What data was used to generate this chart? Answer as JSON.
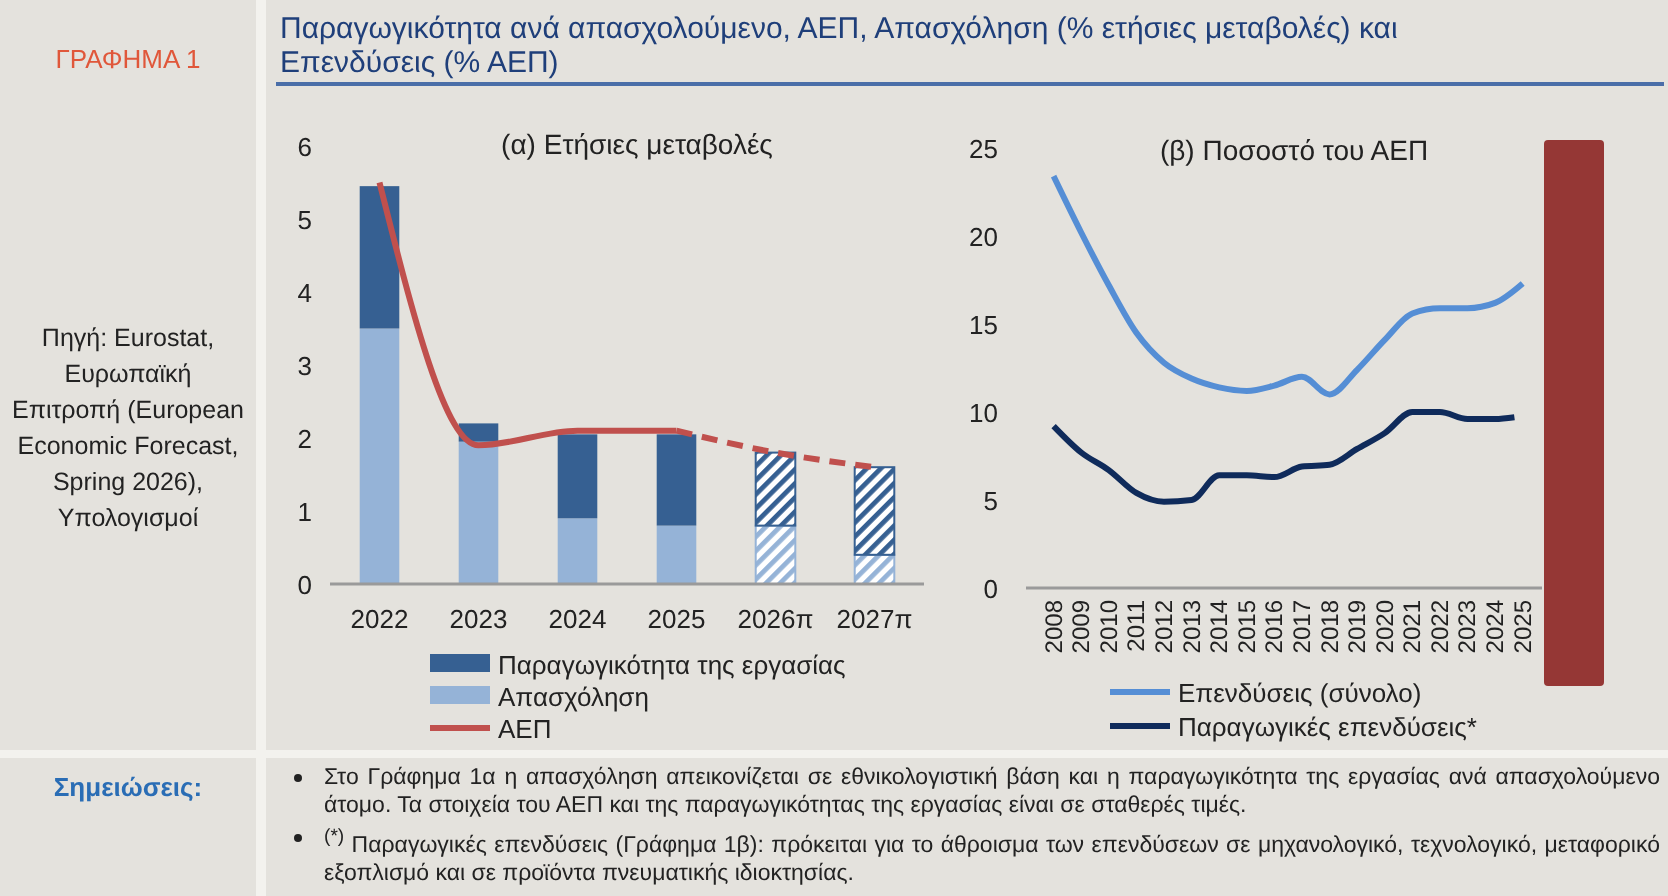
{
  "chart_data": [
    {
      "type": "bar",
      "title": "(α) Ετήσιες μεταβολές",
      "categories": [
        "2022",
        "2023",
        "2024",
        "2025",
        "2026π",
        "2027π"
      ],
      "stacked": true,
      "ylim": [
        0,
        6
      ],
      "yticks": [
        0,
        1,
        2,
        3,
        4,
        5,
        6
      ],
      "legend": "bottom",
      "series": [
        {
          "name": "Απασχόληση",
          "color": "#95b3d7",
          "values": [
            3.5,
            1.95,
            0.9,
            0.8,
            null,
            null
          ]
        },
        {
          "color": "#95b3d7",
          "values": [
            null,
            null,
            null,
            null,
            0.8,
            0.4
          ]
        },
        {
          "name": "Παραγωγικότητα της εργασίας",
          "color": "#366092",
          "values": [
            1.95,
            0.25,
            1.15,
            1.25,
            null,
            null
          ]
        },
        {
          "color": "#366092",
          "values": [
            null,
            null,
            null,
            null,
            1.0,
            1.2
          ]
        },
        {
          "name": "ΑΕΠ",
          "type": "line",
          "color": "#c0504d",
          "values": [
            5.5,
            1.9,
            2.1,
            2.1,
            null,
            null
          ]
        },
        {
          "type": "line",
          "color": "#c0504d",
          "line_style": "dashed",
          "values": [
            null,
            null,
            null,
            2.1,
            1.8,
            1.6
          ]
        }
      ],
      "annotations": [
        "ΓΡΑΦΗΜΑ 1",
        "Παραγωγικότητα ανά απασχολούμενο, ΑΕΠ, Απασχόληση (% ετήσιες μεταβολές) και Επενδύσεις (% ΑΕΠ)",
        "Πηγή: Eurostat, Ευρωπαϊκή Επιτροπή (European Economic Forecast, Spring 2026), Υπολογισμοί",
        "Σημειώσεις:",
        "Στο Γράφημα 1α η απασχόληση απεικονίζεται σε εθνικολογιστική βάση και η παραγωγικότητα της εργασίας ανά απασχολούμενο άτομο. Τα στοιχεία του ΑΕΠ και της παραγωγικότητας της εργασίας είναι σε σταθερές τιμές.",
        "$^{(*)}$ Παραγωγικές επενδύσεις (Γράφημα 1β): πρόκειται για το άθροισμα των επενδύσεων σε μηχανολογικό, τεχνολογικό, μεταφορικό εξοπλισμό και σε προϊόντα πνευματικής ιδιοκτησίας."
      ]
    },
    {
      "type": "line",
      "title": "(β) Ποσοστό του ΑΕΠ",
      "xlim": [
        2007,
        2025.7
      ],
      "xticks": [
        2008,
        2009,
        2010,
        2011,
        2012,
        2013,
        2014,
        2015,
        2016,
        2017,
        2018,
        2019,
        2020,
        2021,
        2022,
        2023,
        2024,
        2025
      ],
      "ylim": [
        0,
        25
      ],
      "yticks": [
        0,
        5,
        10,
        15,
        20,
        25
      ],
      "legend": "bottom",
      "series": [
        {
          "name": "Επενδύσεις (σύνολο)",
          "color": "#558ed5",
          "x": [
            2008,
            2009,
            2010,
            2011,
            2012,
            2013,
            2014,
            2015,
            2016,
            2017,
            2018,
            2019,
            2020,
            2021,
            2022,
            2023,
            2024,
            2025
          ],
          "values": [
            23.4,
            20.2,
            17.2,
            14.5,
            12.8,
            11.9,
            11.4,
            11.2,
            11.5,
            12.0,
            11.0,
            12.4,
            14.1,
            15.6,
            15.9,
            15.9,
            16.2,
            17.3
          ]
        },
        {
          "name": "Παραγωγικές επενδύσεις*",
          "color": "#0f2b5b",
          "x": [
            2008,
            2009,
            2010,
            2011,
            2012,
            2013,
            2014,
            2015,
            2016,
            2017,
            2018,
            2019,
            2020,
            2021,
            2022,
            2023,
            2024,
            2024.7
          ],
          "values": [
            9.2,
            7.7,
            6.7,
            5.4,
            4.9,
            5.0,
            6.4,
            6.4,
            6.3,
            6.9,
            7.0,
            7.9,
            8.8,
            10.0,
            10.0,
            9.6,
            9.6,
            9.7
          ]
        }
      ]
    }
  ]
}
